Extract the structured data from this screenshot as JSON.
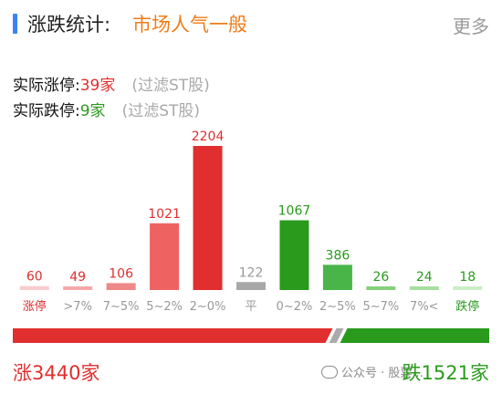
{
  "header": {
    "title": "涨跌统计:",
    "subtitle": "市场人气一般",
    "more_label": "更多"
  },
  "stats": {
    "limit_up_label": "实际涨停:",
    "limit_up_value": "39家",
    "limit_down_label": "实际跌停:",
    "limit_down_value": "9家",
    "filter_note": "(过滤ST股)"
  },
  "chart_data": {
    "type": "bar",
    "categories": [
      "涨停",
      ">7%",
      "7~5%",
      "5~2%",
      "2~0%",
      "平",
      "0~2%",
      "2~5%",
      "5~7%",
      "7%<",
      "跌停"
    ],
    "values": [
      60,
      49,
      106,
      1021,
      2204,
      122,
      1067,
      386,
      26,
      24,
      18
    ],
    "colors": [
      "#f7cdcd",
      "#f4a8a8",
      "#ef8888",
      "#ef6262",
      "#e12e2e",
      "#a8a8a8",
      "#2a9a1d",
      "#49b548",
      "#86d07c",
      "#a6dfa0",
      "#cbeec6"
    ],
    "label_colors": [
      "#e02e2e",
      "#e02e2e",
      "#e02e2e",
      "#e02e2e",
      "#e02e2e",
      "#9a9a9a",
      "#2a9a1d",
      "#2a9a1d",
      "#2a9a1d",
      "#2a9a1d",
      "#2a9a1d"
    ],
    "category_label_colors": [
      "#e02e2e",
      "#999999",
      "#999999",
      "#999999",
      "#999999",
      "#999999",
      "#999999",
      "#999999",
      "#999999",
      "#999999",
      "#2a9a1d"
    ],
    "ylim": [
      0,
      2204
    ]
  },
  "ratio": {
    "up": 3440,
    "down": 1521,
    "up_color": "#e12e2e",
    "neutral_color": "#aaaaaa",
    "down_color": "#2a9a1d"
  },
  "footer": {
    "up_text": "涨3440家",
    "down_text": "跌1521家"
  },
  "watermark": {
    "text": "公众号 · 股票..."
  }
}
